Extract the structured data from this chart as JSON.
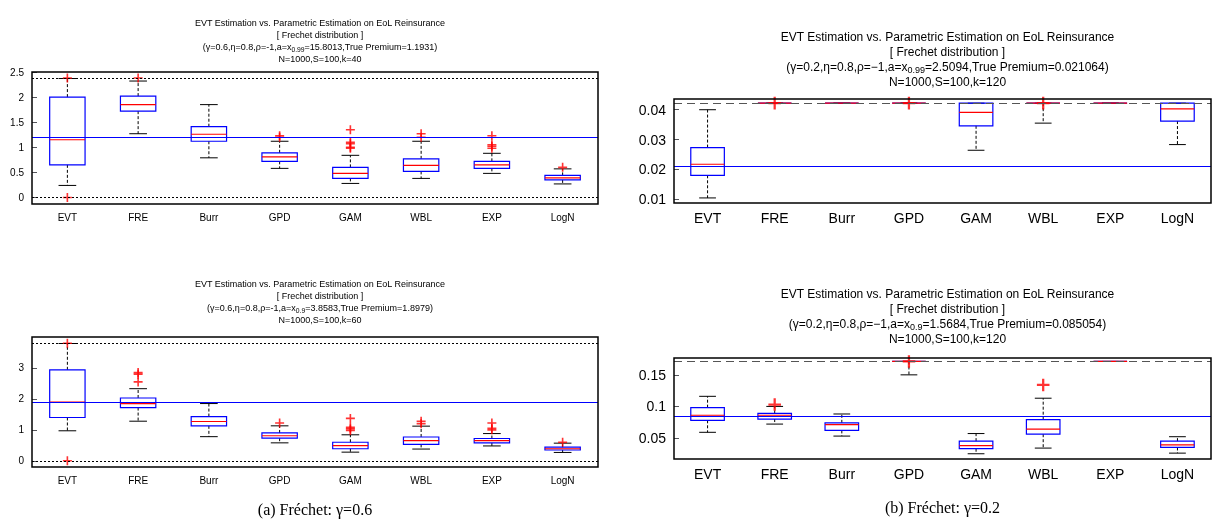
{
  "chart_data": [
    {
      "type": "box",
      "title": "EVT Estimation vs. Parametric Estimation on EoL Reinsurance",
      "subtitle": "[ Frechet distribution ]\n(γ=0.6,η=0.8,ρ=-1,a=x$_{0.99}$=15.8013,True Premium=1.1931)\nN=1000,S=100,k=40",
      "categories": [
        "EVT",
        "FRE",
        "Burr",
        "GPD",
        "GAM",
        "WBL",
        "EXP",
        "LogN"
      ],
      "ylim": [
        -0.13,
        2.5
      ],
      "yticks": [
        0,
        0.5,
        1,
        1.5,
        2,
        2.5
      ],
      "marker": "cross",
      "series": [
        {
          "color": "#0000ff",
          "boxes": [
            {
              "low": 0.24,
              "q1": 0.65,
              "median": 1.15,
              "q3": 2.0,
              "high": 2.37,
              "outliers": [
                2.38,
                0
              ]
            },
            {
              "low": 1.27,
              "q1": 1.72,
              "median": 1.85,
              "q3": 2.02,
              "high": 2.32,
              "outliers": [
                2.38
              ]
            },
            {
              "low": 0.79,
              "q1": 1.12,
              "median": 1.26,
              "q3": 1.41,
              "high": 1.85
            },
            {
              "low": 0.58,
              "q1": 0.72,
              "median": 0.81,
              "q3": 0.89,
              "high": 1.12,
              "outliers": [
                1.2,
                1.23
              ]
            },
            {
              "low": 0.28,
              "q1": 0.38,
              "median": 0.48,
              "q3": 0.6,
              "high": 0.84,
              "outliers": [
                1.35,
                1.1,
                1.07,
                1.0,
                0.98
              ]
            },
            {
              "low": 0.38,
              "q1": 0.52,
              "median": 0.64,
              "q3": 0.77,
              "high": 1.12,
              "outliers": [
                1.27,
                1.2
              ]
            },
            {
              "low": 0.48,
              "q1": 0.58,
              "median": 0.65,
              "q3": 0.72,
              "high": 0.88,
              "outliers": [
                1.23,
                1.05,
                1.02,
                0.98
              ]
            },
            {
              "low": 0.27,
              "q1": 0.35,
              "median": 0.39,
              "q3": 0.44,
              "high": 0.57,
              "outliers": [
                0.6
              ]
            }
          ]
        }
      ],
      "ref_lines": [
        {
          "axis": "y",
          "value": 1.1931,
          "color": "#0000ff",
          "line_style": "solid"
        },
        {
          "axis": "y",
          "value": 0,
          "color": "#000000",
          "line_style": "dotted"
        },
        {
          "axis": "y",
          "value": 2.38,
          "color": "#000000",
          "line_style": "dotted"
        }
      ]
    },
    {
      "type": "box",
      "title": "EVT Estimation vs. Parametric Estimation on EoL Reinsurance",
      "subtitle": "[ Frechet distribution ]\n(γ=0.6,η=0.8,ρ=-1,a=x$_{0.9}$=3.8583,True Premium=1.8979)\nN=1000,S=100,k=60",
      "categories": [
        "EVT",
        "FRE",
        "Burr",
        "GPD",
        "GAM",
        "WBL",
        "EXP",
        "LogN"
      ],
      "ylim": [
        -0.2,
        4.0
      ],
      "yticks": [
        0,
        1,
        2,
        3
      ],
      "marker": "cross",
      "annotations": [
        "(a) Fréchet: γ=0.6"
      ],
      "series": [
        {
          "color": "#0000ff",
          "boxes": [
            {
              "low": 0.97,
              "q1": 1.4,
              "median": 1.9,
              "q3": 2.94,
              "high": 3.79,
              "outliers": [
                3.8,
                0
              ]
            },
            {
              "low": 1.28,
              "q1": 1.72,
              "median": 1.85,
              "q3": 2.03,
              "high": 2.33,
              "outliers": [
                2.85,
                2.8,
                2.55
              ]
            },
            {
              "low": 0.78,
              "q1": 1.13,
              "median": 1.27,
              "q3": 1.43,
              "high": 1.85
            },
            {
              "low": 0.58,
              "q1": 0.73,
              "median": 0.81,
              "q3": 0.9,
              "high": 1.13,
              "outliers": [
                1.22
              ]
            },
            {
              "low": 0.28,
              "q1": 0.39,
              "median": 0.49,
              "q3": 0.6,
              "high": 0.84,
              "outliers": [
                1.37,
                1.08,
                1.03,
                0.98
              ]
            },
            {
              "low": 0.38,
              "q1": 0.53,
              "median": 0.65,
              "q3": 0.77,
              "high": 1.12,
              "outliers": [
                1.28,
                1.2
              ]
            },
            {
              "low": 0.48,
              "q1": 0.58,
              "median": 0.65,
              "q3": 0.72,
              "high": 0.88,
              "outliers": [
                1.22,
                1.05,
                1.0
              ]
            },
            {
              "low": 0.27,
              "q1": 0.35,
              "median": 0.39,
              "q3": 0.44,
              "high": 0.57,
              "outliers": [
                0.6
              ]
            }
          ]
        }
      ],
      "ref_lines": [
        {
          "axis": "y",
          "value": 1.8979,
          "color": "#0000ff",
          "line_style": "solid"
        },
        {
          "axis": "y",
          "value": 0,
          "color": "#000000",
          "line_style": "dotted"
        },
        {
          "axis": "y",
          "value": 3.8,
          "color": "#000000",
          "line_style": "dotted"
        }
      ]
    },
    {
      "type": "box",
      "title": "EVT Estimation vs. Parametric Estimation on EoL Reinsurance",
      "subtitle": "[ Frechet distribution ]\n(γ=0.2,η=0.8,ρ=−1,a=x$_{0.99}$=2.5094,True Premium=0.021064)\nN=1000,S=100,k=120",
      "categories": [
        "EVT",
        "FRE",
        "Burr",
        "GPD",
        "GAM",
        "WBL",
        "EXP",
        "LogN"
      ],
      "ylim": [
        0.0087,
        0.0436
      ],
      "yticks": [
        0.01,
        0.02,
        0.03,
        0.04
      ],
      "marker": "cross",
      "series": [
        {
          "color": "#0000ff",
          "boxes": [
            {
              "low": 0.0104,
              "q1": 0.018,
              "median": 0.0217,
              "q3": 0.0273,
              "high": 0.04
            },
            {
              "low": 0.0422,
              "q1": 0.0422,
              "median": 0.0422,
              "q3": 0.0422,
              "high": 0.0422,
              "outliers": [
                0.0422
              ]
            },
            {
              "low": 0.0422,
              "q1": 0.0422,
              "median": 0.0422,
              "q3": 0.0422,
              "high": 0.0422
            },
            {
              "low": 0.0422,
              "q1": 0.0422,
              "median": 0.0422,
              "q3": 0.0422,
              "high": 0.0422,
              "outliers": [
                0.0422
              ]
            },
            {
              "low": 0.0264,
              "q1": 0.0346,
              "median": 0.0391,
              "q3": 0.0422,
              "high": 0.0422
            },
            {
              "low": 0.0355,
              "q1": 0.0422,
              "median": 0.0422,
              "q3": 0.0422,
              "high": 0.0422,
              "outliers": [
                0.0422
              ]
            },
            {
              "low": 0.0422,
              "q1": 0.0422,
              "median": 0.0422,
              "q3": 0.0422,
              "high": 0.0422
            },
            {
              "low": 0.0283,
              "q1": 0.0362,
              "median": 0.0403,
              "q3": 0.0422,
              "high": 0.0422
            }
          ]
        }
      ],
      "ref_lines": [
        {
          "axis": "y",
          "value": 0.021064,
          "color": "#0000ff",
          "line_style": "solid"
        },
        {
          "axis": "y",
          "value": 0.0422,
          "color": "#555555",
          "line_style": "dashed"
        }
      ]
    },
    {
      "type": "box",
      "title": "EVT Estimation vs. Parametric Estimation on EoL Reinsurance",
      "subtitle": "[ Frechet distribution ]\n(γ=0.2,η=0.8,ρ=−1,a=x$_{0.9}$=1.5684,True Premium=0.085054)\nN=1000,S=100,k=120",
      "categories": [
        "EVT",
        "FRE",
        "Burr",
        "GPD",
        "GAM",
        "WBL",
        "EXP",
        "LogN"
      ],
      "ylim": [
        0.0167,
        0.1767
      ],
      "yticks": [
        0.05,
        0.1,
        0.15
      ],
      "marker": "cross",
      "annotations": [
        "(b) Fréchet: γ=0.2"
      ],
      "series": [
        {
          "color": "#0000ff",
          "boxes": [
            {
              "low": 0.059,
              "q1": 0.078,
              "median": 0.086,
              "q3": 0.098,
              "high": 0.116
            },
            {
              "low": 0.072,
              "q1": 0.08,
              "median": 0.086,
              "q3": 0.089,
              "high": 0.1,
              "outliers": [
                0.103
              ]
            },
            {
              "low": 0.053,
              "q1": 0.062,
              "median": 0.071,
              "q3": 0.074,
              "high": 0.088
            },
            {
              "low": 0.15,
              "q1": 0.1712,
              "median": 0.1712,
              "q3": 0.1712,
              "high": 0.1712,
              "outliers": [
                0.1712
              ]
            },
            {
              "low": 0.025,
              "q1": 0.033,
              "median": 0.038,
              "q3": 0.045,
              "high": 0.057
            },
            {
              "low": 0.034,
              "q1": 0.056,
              "median": 0.064,
              "q3": 0.079,
              "high": 0.113,
              "outliers": [
                0.134
              ]
            },
            {
              "low": 0.1712,
              "q1": 0.1712,
              "median": 0.1712,
              "q3": 0.1712,
              "high": 0.1712
            },
            {
              "low": 0.026,
              "q1": 0.035,
              "median": 0.039,
              "q3": 0.045,
              "high": 0.052
            }
          ]
        }
      ],
      "ref_lines": [
        {
          "axis": "y",
          "value": 0.085054,
          "color": "#0000ff",
          "line_style": "solid"
        },
        {
          "axis": "y",
          "value": 0.1712,
          "color": "#555555",
          "line_style": "dashed"
        }
      ]
    }
  ]
}
